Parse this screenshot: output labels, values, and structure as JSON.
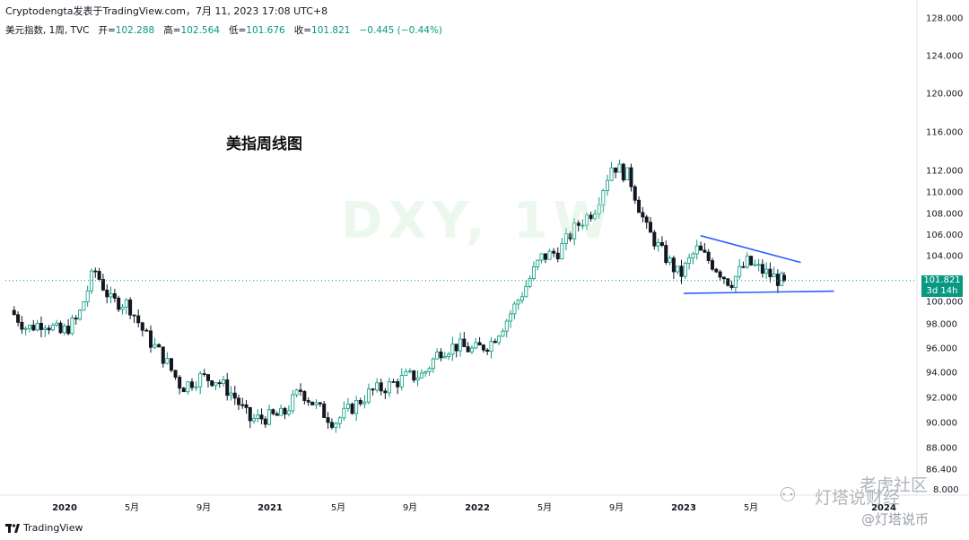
{
  "header": {
    "source": "Cryptodengta发表于TradingView.com，7月 11, 2023 17:08 UTC+8"
  },
  "ohlc": {
    "symbol": "美元指数, 1周, TVC",
    "open_label": "开=",
    "open": "102.288",
    "high_label": "高=",
    "high": "102.564",
    "low_label": "低=",
    "low": "101.676",
    "close_label": "收=",
    "close": "101.821",
    "change": "−0.445 (−0.44%)"
  },
  "chart_title": "美指周线图",
  "watermark": "DXY, 1W",
  "price_tag": {
    "value": "101.821",
    "countdown": "3d 14h"
  },
  "branding": {
    "tv": "TradingView"
  },
  "wechat": {
    "line1": "老虎社区",
    "line2": "灯塔说财经",
    "line3": "@灯塔说币"
  },
  "colors": {
    "up": "#089981",
    "down": "#131722",
    "trend": "#2962ff",
    "price_line": "#089981"
  },
  "chart_data": {
    "type": "candlestick",
    "interval": "weekly",
    "y_ticks": [
      86.4,
      88,
      90,
      92,
      94,
      96,
      98,
      100,
      104,
      106,
      108,
      110,
      112,
      116,
      120,
      124,
      128
    ],
    "y_tick_labels": [
      "86.400",
      "88.000",
      "90.000",
      "92.000",
      "94.000",
      "96.000",
      "98.000",
      "100.000",
      "104.000",
      "106.000",
      "108.000",
      "110.000",
      "112.000",
      "116.000",
      "120.000",
      "124.000",
      "128.000"
    ],
    "y_partial_labels": [
      "8.000"
    ],
    "x_ticks": [
      {
        "label": "2020",
        "date": "2020-01",
        "bold": true
      },
      {
        "label": "5月",
        "date": "2020-05"
      },
      {
        "label": "9月",
        "date": "2020-09"
      },
      {
        "label": "2021",
        "date": "2021-01",
        "bold": true
      },
      {
        "label": "5月",
        "date": "2021-05"
      },
      {
        "label": "9月",
        "date": "2021-09"
      },
      {
        "label": "2022",
        "date": "2022-01",
        "bold": true
      },
      {
        "label": "5月",
        "date": "2022-05"
      },
      {
        "label": "9月",
        "date": "2022-09"
      },
      {
        "label": "2023",
        "date": "2023-01",
        "bold": true
      },
      {
        "label": "5月",
        "date": "2023-05"
      },
      {
        "label": "2024",
        "date": "2024-01",
        "bold": true
      }
    ],
    "keypoints": [
      [
        "2019-10",
        99.2
      ],
      [
        "2019-11",
        97.6
      ],
      [
        "2019-12",
        98.2
      ],
      [
        "2020-01",
        97.2
      ],
      [
        "2020-02",
        98.4
      ],
      [
        "2020-03",
        102.8
      ],
      [
        "2020-04",
        100.0
      ],
      [
        "2020-05",
        99.8
      ],
      [
        "2020-06",
        97.0
      ],
      [
        "2020-07",
        95.2
      ],
      [
        "2020-08",
        92.8
      ],
      [
        "2020-09",
        93.6
      ],
      [
        "2020-10",
        93.4
      ],
      [
        "2020-11",
        92.2
      ],
      [
        "2020-12",
        90.2
      ],
      [
        "2021-01",
        90.4
      ],
      [
        "2021-02",
        90.6
      ],
      [
        "2021-03",
        92.6
      ],
      [
        "2021-04",
        91.2
      ],
      [
        "2021-05",
        90.0
      ],
      [
        "2021-06",
        91.2
      ],
      [
        "2021-07",
        92.4
      ],
      [
        "2021-08",
        92.9
      ],
      [
        "2021-09",
        93.6
      ],
      [
        "2021-10",
        93.8
      ],
      [
        "2021-11",
        95.8
      ],
      [
        "2021-12",
        96.2
      ],
      [
        "2022-01",
        95.8
      ],
      [
        "2022-02",
        96.4
      ],
      [
        "2022-03",
        98.4
      ],
      [
        "2022-04",
        101.0
      ],
      [
        "2022-05",
        103.8
      ],
      [
        "2022-06",
        104.4
      ],
      [
        "2022-07",
        106.8
      ],
      [
        "2022-08",
        108.4
      ],
      [
        "2022-09",
        112.6
      ],
      [
        "2022-10",
        111.4
      ],
      [
        "2022-11",
        106.6
      ],
      [
        "2022-12",
        104.2
      ],
      [
        "2023-01",
        102.2
      ],
      [
        "2023-02",
        104.6
      ],
      [
        "2023-03",
        103.2
      ],
      [
        "2023-04",
        101.6
      ],
      [
        "2023-05",
        103.4
      ],
      [
        "2023-06",
        102.6
      ],
      [
        "2023-07",
        101.8
      ]
    ],
    "last": {
      "date": "2023-07",
      "open": 102.288,
      "high": 102.564,
      "low": 101.676,
      "close": 101.821
    },
    "trendlines": [
      {
        "from": [
          "2023-02",
          105.9
        ],
        "to": [
          "2023-08",
          103.4
        ]
      },
      {
        "from": [
          "2023-01",
          100.7
        ],
        "to": [
          "2023-10",
          100.9
        ]
      }
    ],
    "price_line": 101.821
  }
}
